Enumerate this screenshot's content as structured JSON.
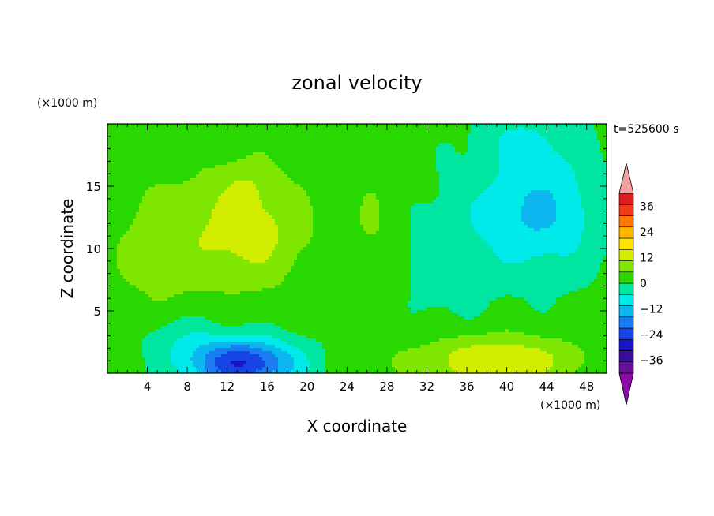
{
  "chart_data": {
    "type": "heatmap",
    "title": "zonal velocity",
    "xlabel": "X coordinate",
    "ylabel": "Z coordinate",
    "x_unit": "(×1000 m)",
    "y_unit": "(×1000 m)",
    "time_label": "t=525600 s",
    "xlim": [
      0,
      50
    ],
    "ylim": [
      0,
      20
    ],
    "x_ticks": [
      4,
      8,
      12,
      16,
      20,
      24,
      28,
      32,
      36,
      40,
      44,
      48
    ],
    "y_ticks": [
      5,
      10,
      15
    ],
    "colorbar": {
      "levels": [
        -42,
        -36,
        -30,
        -24,
        -18,
        -12,
        -6,
        0,
        6,
        12,
        18,
        24,
        30,
        36,
        42
      ],
      "tick_labels": [
        "36",
        "24",
        "12",
        "0",
        "−12",
        "−24",
        "−36"
      ],
      "tick_values": [
        36,
        24,
        12,
        0,
        -12,
        -24,
        -36
      ],
      "colors": [
        "#6a0f9a",
        "#3c0c9a",
        "#1a14c4",
        "#1846e6",
        "#1a7cf0",
        "#0cb6ee",
        "#00eaea",
        "#00e6a0",
        "#28d800",
        "#7ee600",
        "#d2ee00",
        "#ffe400",
        "#ffb400",
        "#ff7800",
        "#f03c14",
        "#dc1e1e"
      ],
      "under_color": "#8c0aa8",
      "over_color": "#f4a0a0"
    },
    "features": [
      {
        "x": 14,
        "z": 11.5,
        "amp": 13,
        "sx": 6.0,
        "sz": 4.5
      },
      {
        "x": 14,
        "z": 15.5,
        "amp": 4,
        "sx": 3.0,
        "sz": 2.0
      },
      {
        "x": 13.5,
        "z": 0.8,
        "amp": -32,
        "sx": 5.5,
        "sz": 2.0
      },
      {
        "x": 43,
        "z": 13.0,
        "amp": -15,
        "sx": 6.5,
        "sz": 5.0
      },
      {
        "x": 42,
        "z": 19.0,
        "amp": -6,
        "sx": 5.0,
        "sz": 2.0
      },
      {
        "x": 39,
        "z": 1.0,
        "amp": 16,
        "sx": 8.0,
        "sz": 2.0
      },
      {
        "x": 33,
        "z": 9.0,
        "amp": -5,
        "sx": 5.0,
        "sz": 5.0
      },
      {
        "x": 27,
        "z": 10.0,
        "amp": 5,
        "sx": 3.0,
        "sz": 7.0
      },
      {
        "x": 5,
        "z": 10.0,
        "amp": 6,
        "sx": 5.0,
        "sz": 6.0
      },
      {
        "x": 7,
        "z": 3.0,
        "amp": -6,
        "sx": 4.0,
        "sz": 2.0
      }
    ]
  }
}
